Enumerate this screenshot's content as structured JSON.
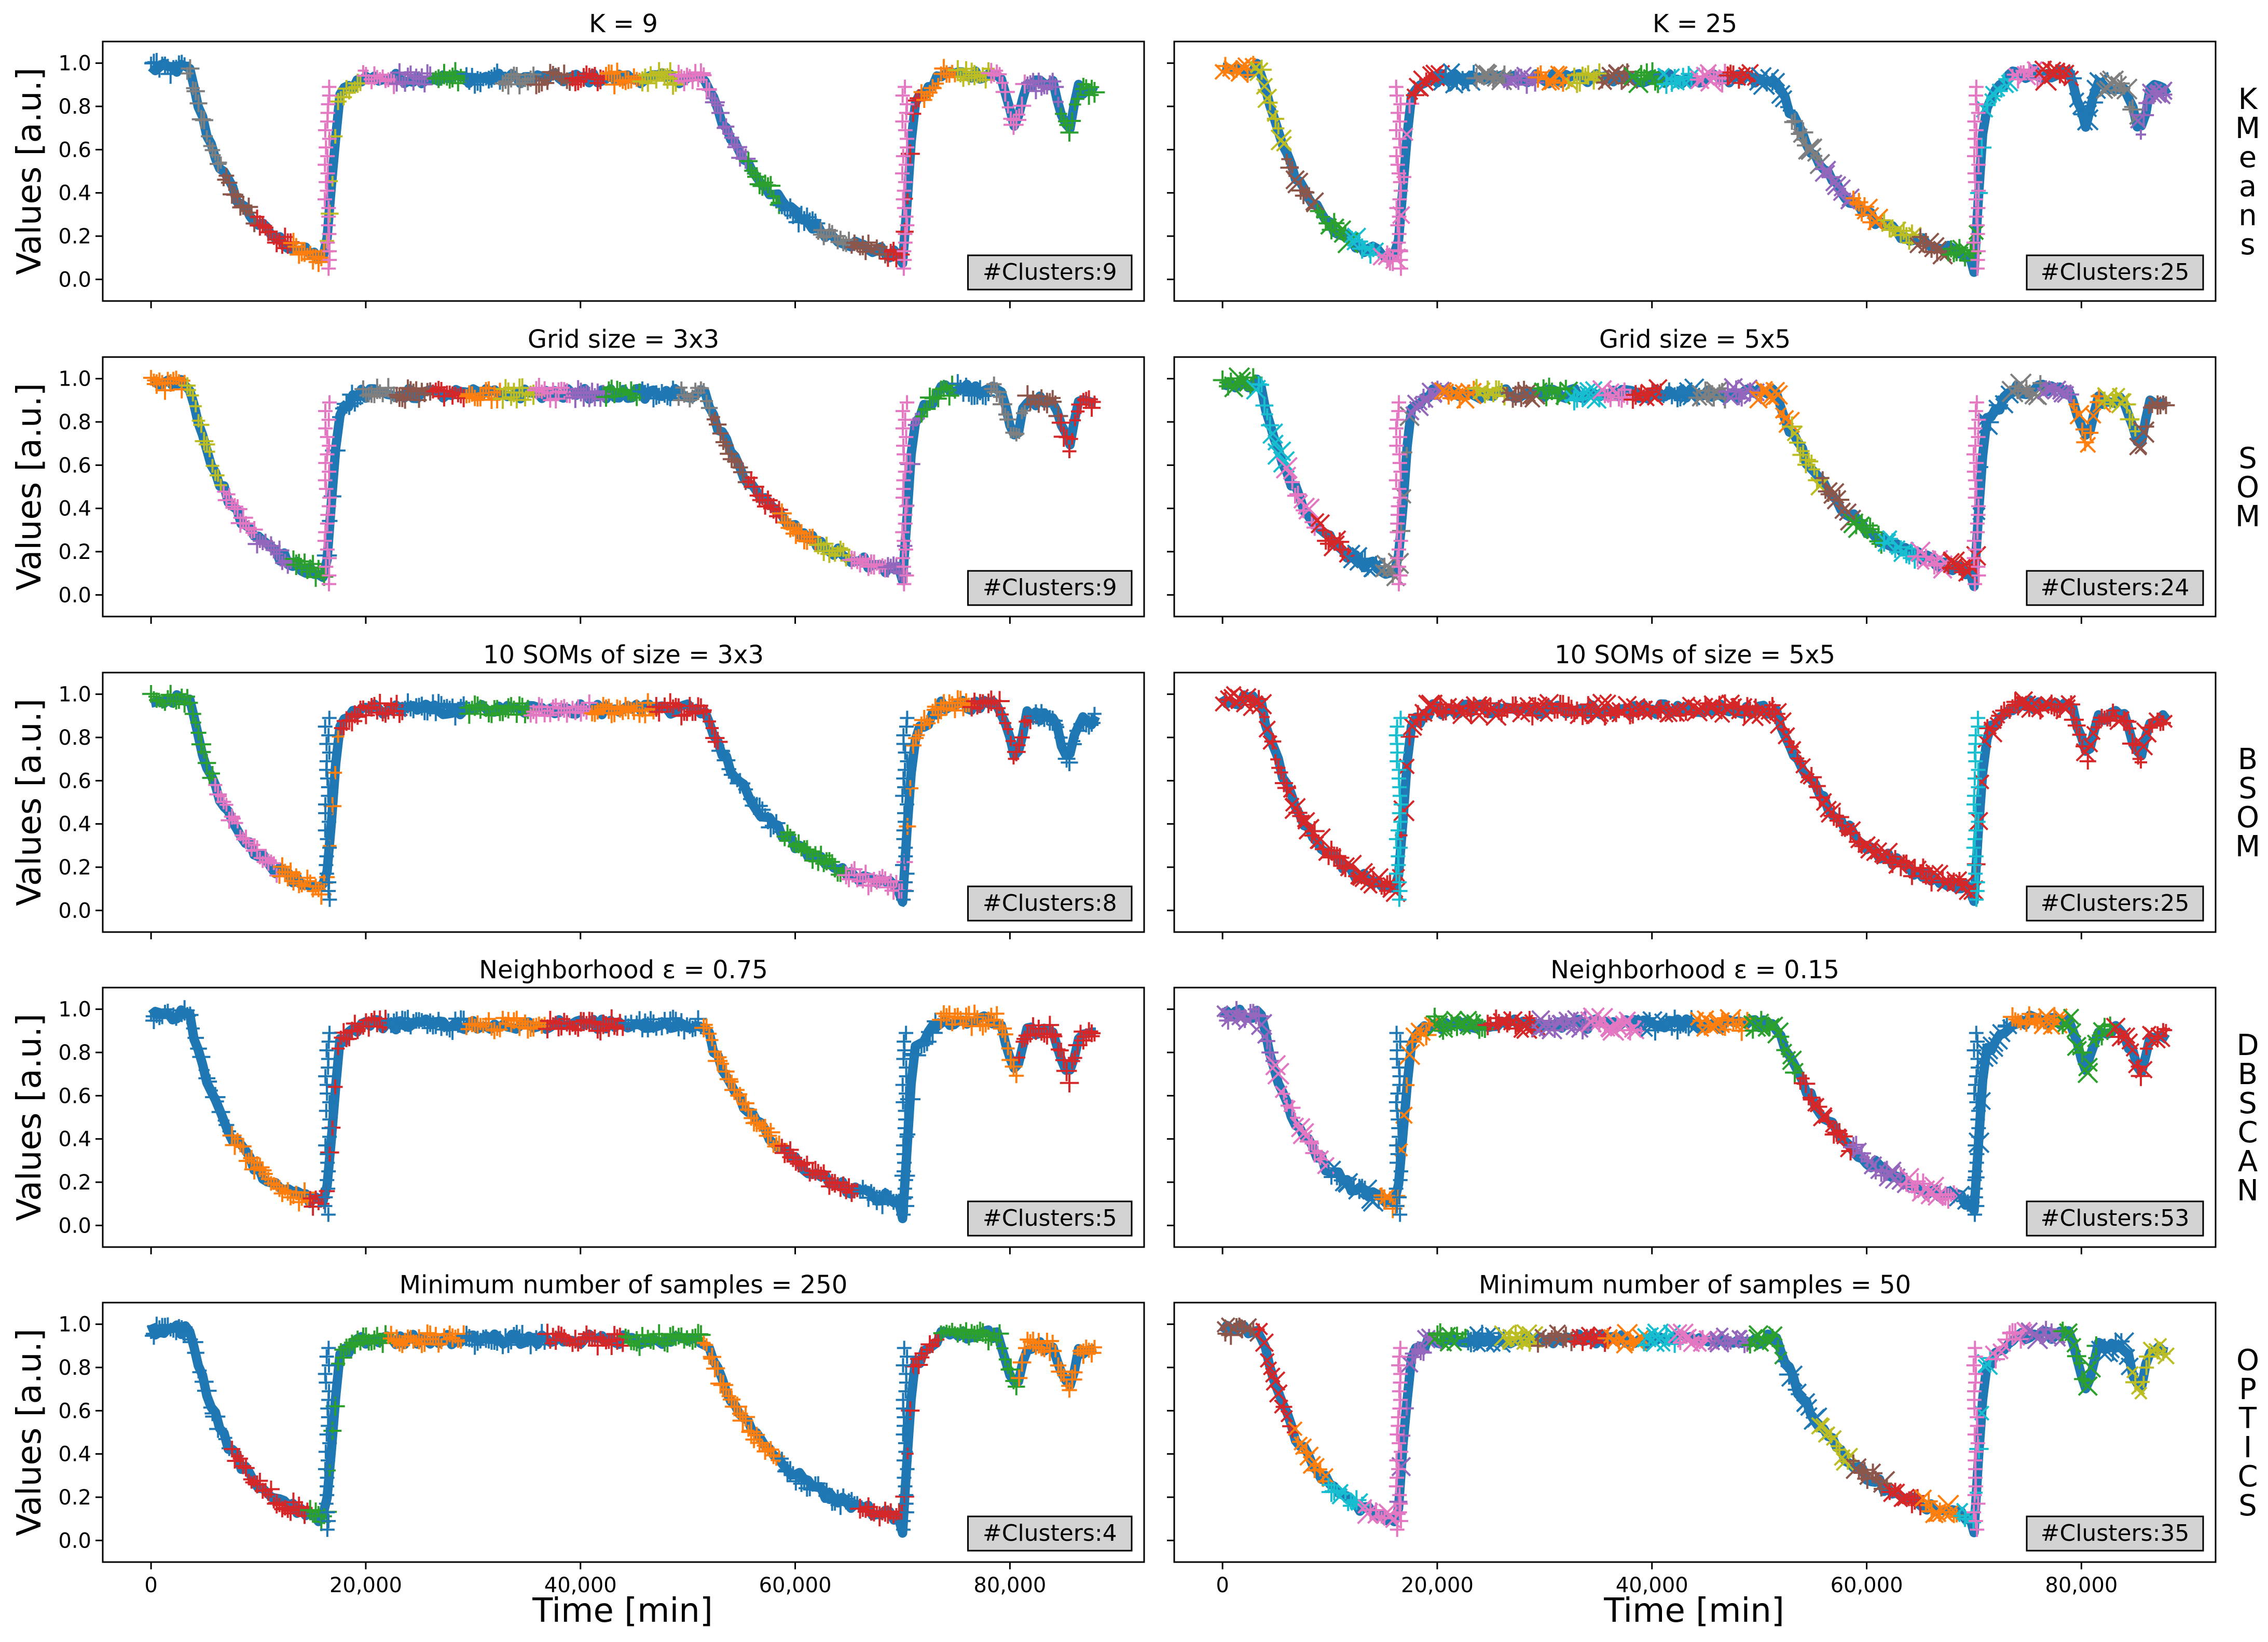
{
  "figure": {
    "y_axis_label": "Values [a.u.]",
    "x_axis_label": "Time [min]",
    "x_ticks": [
      0,
      20000,
      40000,
      60000,
      80000
    ],
    "x_tick_labels": [
      "0",
      "20,000",
      "40,000",
      "60,000",
      "80,000"
    ],
    "y_ticks": [
      0.0,
      0.2,
      0.4,
      0.6,
      0.8,
      1.0
    ],
    "y_tick_labels": [
      "0.0",
      "0.2",
      "0.4",
      "0.6",
      "0.8",
      "1.0"
    ],
    "xlim": [
      -4500,
      92500
    ],
    "ylim": [
      -0.1,
      1.1
    ],
    "palette": [
      "#1f77b4",
      "#ff7f0e",
      "#2ca02c",
      "#d62728",
      "#9467bd",
      "#8c564b",
      "#e377c2",
      "#7f7f7f",
      "#bcbd22",
      "#17becf"
    ],
    "rows": [
      {
        "label": "KMeans",
        "letters": [
          "K",
          "M",
          "e",
          "a",
          "n",
          "s"
        ]
      },
      {
        "label": "SOM",
        "letters": [
          "S",
          "O",
          "M"
        ]
      },
      {
        "label": "BSOM",
        "letters": [
          "B",
          "S",
          "O",
          "M"
        ]
      },
      {
        "label": "DBSCAN",
        "letters": [
          "D",
          "B",
          "S",
          "C",
          "A",
          "N"
        ]
      },
      {
        "label": "OPTICS",
        "letters": [
          "O",
          "P",
          "T",
          "I",
          "C",
          "S"
        ]
      }
    ]
  },
  "chart_data": [
    {
      "type": "scatter",
      "row": 0,
      "col": 0,
      "title": "K = 9",
      "annotation": "#Clusters:9",
      "clusters": 9,
      "marker": "plus",
      "colors": [
        0,
        1,
        2,
        3,
        4,
        5,
        6,
        7,
        8
      ]
    },
    {
      "type": "scatter",
      "row": 0,
      "col": 1,
      "title": "K = 25",
      "annotation": "#Clusters:25",
      "clusters": 25,
      "marker": "mixed",
      "colors": [
        0,
        1,
        2,
        3,
        4,
        5,
        6,
        7,
        8,
        9
      ]
    },
    {
      "type": "scatter",
      "row": 1,
      "col": 0,
      "title": "Grid size = 3x3",
      "annotation": "#Clusters:9",
      "clusters": 9,
      "marker": "plus",
      "colors": [
        0,
        1,
        2,
        3,
        4,
        5,
        6,
        7,
        8
      ]
    },
    {
      "type": "scatter",
      "row": 1,
      "col": 1,
      "title": "Grid size = 5x5",
      "annotation": "#Clusters:24",
      "clusters": 24,
      "marker": "mixed",
      "colors": [
        0,
        1,
        2,
        3,
        4,
        5,
        6,
        7,
        8,
        9
      ]
    },
    {
      "type": "scatter",
      "row": 2,
      "col": 0,
      "title": "10 SOMs of size = 3x3",
      "annotation": "#Clusters:8",
      "clusters": 8,
      "marker": "plus",
      "colors": [
        0,
        1,
        2,
        3,
        6
      ]
    },
    {
      "type": "scatter",
      "row": 2,
      "col": 1,
      "title": "10 SOMs of size = 5x5",
      "annotation": "#Clusters:25",
      "clusters": 25,
      "marker": "mixed",
      "colors": [
        0,
        1,
        2,
        3,
        4,
        6,
        9
      ]
    },
    {
      "type": "scatter",
      "row": 3,
      "col": 0,
      "title": "Neighborhood ε = 0.75",
      "annotation": "#Clusters:5",
      "clusters": 5,
      "marker": "plus",
      "colors": [
        0,
        1,
        3
      ]
    },
    {
      "type": "scatter",
      "row": 3,
      "col": 1,
      "title": "Neighborhood ε = 0.15",
      "annotation": "#Clusters:53",
      "clusters": 53,
      "marker": "mixed",
      "colors": [
        0,
        1,
        2,
        3,
        4,
        6
      ]
    },
    {
      "type": "scatter",
      "row": 4,
      "col": 0,
      "title": "Minimum number of samples = 250",
      "annotation": "#Clusters:4",
      "clusters": 4,
      "marker": "plus",
      "colors": [
        0,
        1,
        2,
        3
      ]
    },
    {
      "type": "scatter",
      "row": 4,
      "col": 1,
      "title": "Minimum number of samples = 50",
      "annotation": "#Clusters:35",
      "clusters": 35,
      "marker": "mixed",
      "colors": [
        0,
        1,
        2,
        3,
        4,
        5,
        6,
        8,
        9
      ]
    }
  ]
}
